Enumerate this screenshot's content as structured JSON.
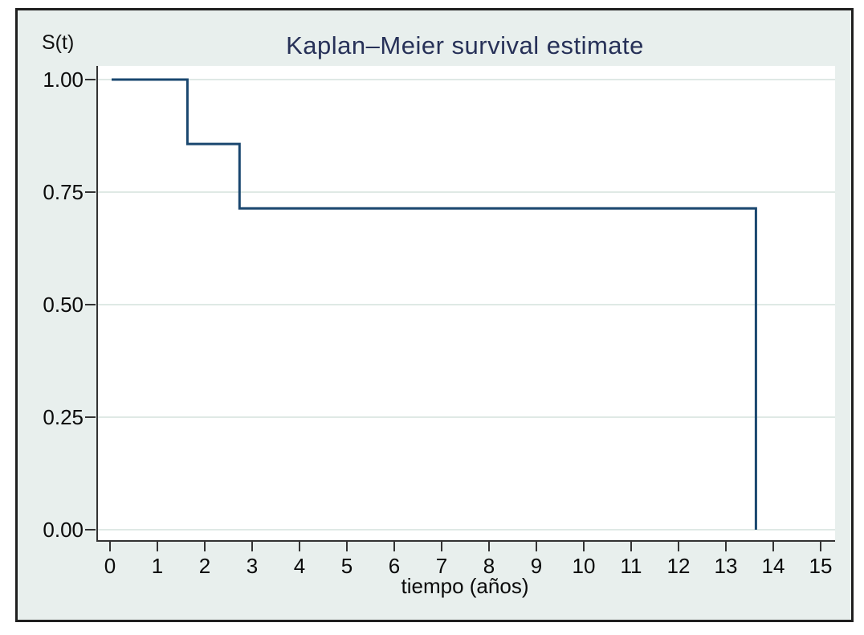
{
  "figure": {
    "title": "Kaplan–Meier survival estimate",
    "y_axis_label": "S(t)",
    "x_axis_label": "tiempo (años)"
  },
  "chart_data": {
    "type": "line",
    "subtype": "kaplan-meier-step",
    "title": "Kaplan–Meier survival estimate",
    "xlabel": "tiempo (años)",
    "ylabel": "S(t)",
    "xlim": [
      0,
      15
    ],
    "ylim": [
      0,
      1
    ],
    "x_ticks": [
      0,
      1,
      2,
      3,
      4,
      5,
      6,
      7,
      8,
      9,
      10,
      11,
      12,
      13,
      14,
      15
    ],
    "y_ticks": [
      {
        "value": 1.0,
        "label": "1.00"
      },
      {
        "value": 0.75,
        "label": "0.75"
      },
      {
        "value": 0.5,
        "label": "0.50"
      },
      {
        "value": 0.25,
        "label": "0.25"
      },
      {
        "value": 0.0,
        "label": "0.00"
      }
    ],
    "grid": "horizontal-only",
    "legend": "none",
    "series": [
      {
        "name": "Kaplan–Meier survival estimate",
        "color": "#1a476f",
        "step": true,
        "points": [
          {
            "t": 0.0,
            "s": 1.0
          },
          {
            "t": 1.6,
            "s": 0.857
          },
          {
            "t": 2.7,
            "s": 0.714
          },
          {
            "t": 13.6,
            "s": 0.0
          }
        ]
      }
    ],
    "event_times": [
      1.6,
      2.7,
      13.6
    ]
  },
  "colors": {
    "page_background": "#ffffff",
    "figure_background": "#e8efed",
    "plot_background": "#ffffff",
    "grid_line": "#dfe9e5",
    "axis_line": "#333333",
    "curve": "#1a476f",
    "title_text": "#273158",
    "tick_text": "#0a0a0a",
    "frame_border": "#1f1f1f"
  }
}
